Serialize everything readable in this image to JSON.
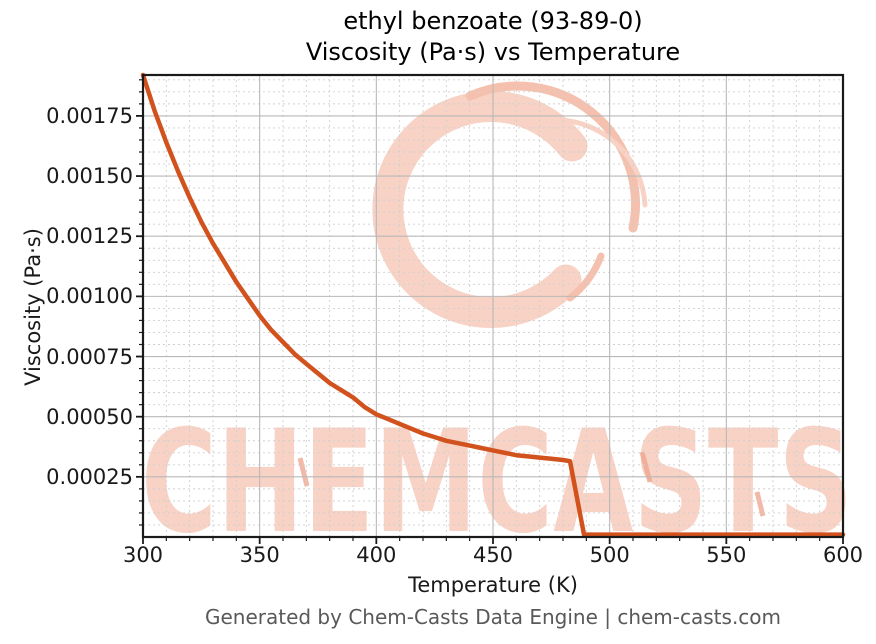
{
  "figure": {
    "title_line1": "ethyl benzoate (93-89-0)",
    "title_line2": "Viscosity (Pa·s) vs Temperature",
    "footer": "Generated by Chem-Casts Data Engine | chem-casts.com",
    "watermark_text": "CHEMCASTS"
  },
  "colors": {
    "curve": "#d2521e",
    "watermark": "#f8d2c5",
    "watermark_accent": "#f5c0ad",
    "watermark_speck": "#eda28c",
    "grid_major": "#b8b8b8",
    "grid_minor": "#cfcfcf",
    "spine": "#1a1a1a",
    "footer_text": "#595959",
    "title_text": "#000000"
  },
  "chart_data": {
    "type": "line",
    "title": "ethyl benzoate (93-89-0) — Viscosity (Pa·s) vs Temperature",
    "xlabel": "Temperature (K)",
    "ylabel": "Viscosity (Pa·s)",
    "xlim": [
      300,
      600
    ],
    "ylim": [
      0,
      0.00192
    ],
    "xticks": [
      300,
      350,
      400,
      450,
      500,
      550,
      600
    ],
    "xtick_labels": [
      "300",
      "350",
      "400",
      "450",
      "500",
      "550",
      "600"
    ],
    "yticks": [
      0.00025,
      0.0005,
      0.00075,
      0.001,
      0.00125,
      0.0015,
      0.00175
    ],
    "ytick_labels": [
      "0.00025",
      "0.00050",
      "0.00075",
      "0.00100",
      "0.00125",
      "0.00150",
      "0.00175"
    ],
    "x_minor_step": 10,
    "y_minor_step": 5e-05,
    "grid": "major solid + minor dotted",
    "legend": "none",
    "series": [
      {
        "name": "viscosity",
        "color": "#d2521e",
        "linewidth": 4.5,
        "x": [
          300,
          305,
          310,
          315,
          320,
          325,
          330,
          335,
          340,
          345,
          350,
          355,
          360,
          365,
          370,
          375,
          380,
          385,
          390,
          395,
          400,
          405,
          410,
          415,
          420,
          425,
          430,
          435,
          440,
          445,
          450,
          455,
          460,
          465,
          470,
          475,
          480,
          483,
          489,
          495,
          510,
          530,
          550,
          570,
          600
        ],
        "y": [
          0.00192,
          0.00177,
          0.00164,
          0.00152,
          0.00141,
          0.00131,
          0.00122,
          0.00114,
          0.00106,
          0.00099,
          0.00092,
          0.00086,
          0.00081,
          0.00076,
          0.00072,
          0.00068,
          0.00064,
          0.00061,
          0.00058,
          0.00054,
          0.00051,
          0.00049,
          0.00047,
          0.00045,
          0.00043,
          0.000415,
          0.0004,
          0.00039,
          0.00038,
          0.00037,
          0.00036,
          0.00035,
          0.00034,
          0.000335,
          0.00033,
          0.000325,
          0.00032,
          0.000315,
          1e-05,
          1e-05,
          1e-05,
          1e-05,
          1e-05,
          1e-05,
          1e-05
        ]
      }
    ]
  }
}
